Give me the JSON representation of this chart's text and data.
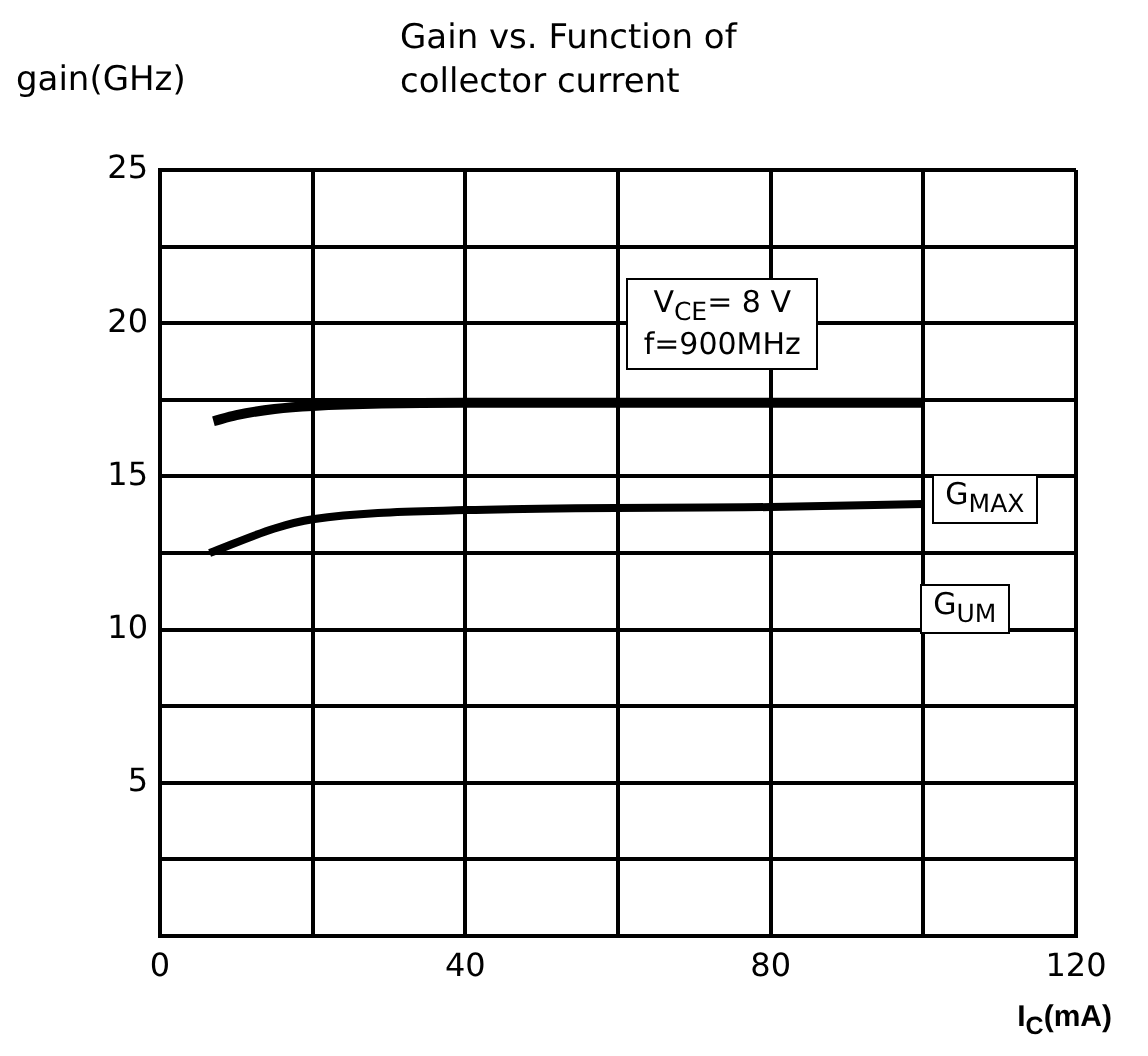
{
  "chart_data": {
    "type": "line",
    "title": "Gain vs. Function of collector current",
    "ylabel": "gain(GHz)",
    "xlabel": "I$_{C}$(mA)",
    "xlim": [
      0,
      120
    ],
    "xticks": [
      0,
      {
        "value": 20,
        "label": null
      },
      40,
      {
        "value": 60,
        "label": null
      },
      80,
      {
        "value": 100,
        "label": null
      },
      120
    ],
    "ylim": [
      0,
      25
    ],
    "yticks": [
      {
        "value": 0,
        "label": null
      },
      {
        "value": 2.5,
        "label": null
      },
      5,
      {
        "value": 7.5,
        "label": null
      },
      10,
      {
        "value": 12.5,
        "label": null
      },
      15,
      {
        "value": 17.5,
        "label": null
      },
      20,
      {
        "value": 22.5,
        "label": null
      },
      25
    ],
    "grid": true,
    "legend": false,
    "marker": "none",
    "line_style": "solid",
    "annotations": [
      "V$_{CE}$= 8 V\nf=900MHz",
      "G$_{UM}$"
    ],
    "series": [
      {
        "color": "#000000",
        "x": [
          7,
          10,
          15,
          20,
          40,
          100
        ],
        "values": [
          16.8,
          17.0,
          17.2,
          17.3,
          17.4,
          17.4
        ]
      },
      {
        "name": "G$_{MAX}$",
        "color": "#000000",
        "x": [
          6.5,
          15,
          20,
          40,
          80,
          100
        ],
        "values": [
          12.5,
          13.3,
          13.6,
          13.9,
          14.0,
          14.1
        ]
      }
    ]
  }
}
